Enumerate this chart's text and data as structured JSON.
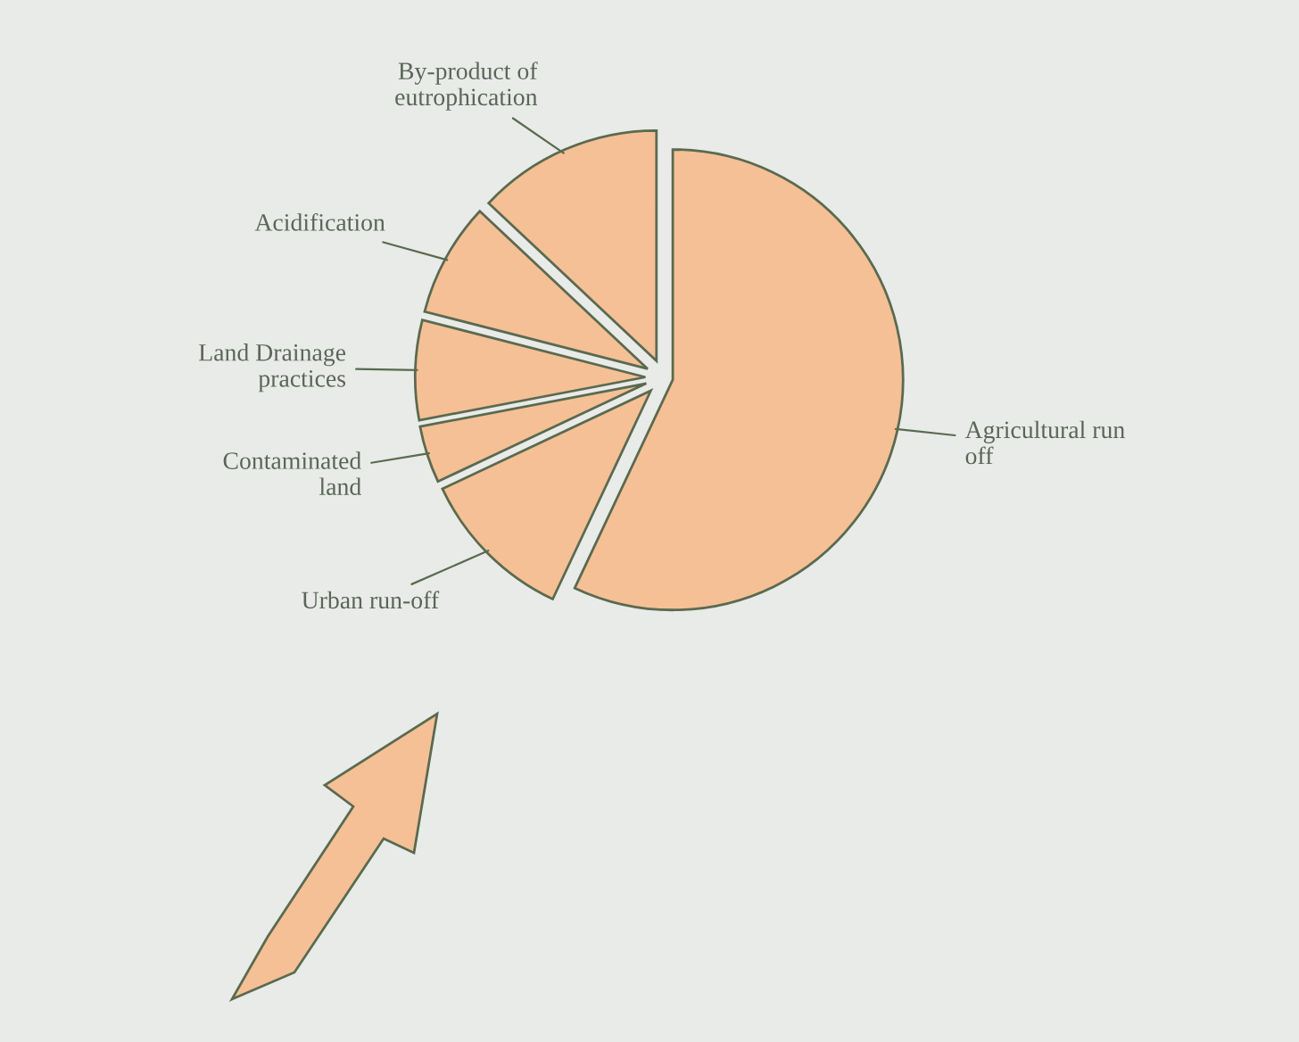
{
  "chart_data": {
    "type": "pie",
    "categories": [
      "Agricultural run\noff",
      "Urban run-off",
      "Contaminated\nland",
      "Land Drainage\npractices",
      "Acidification",
      "By-product of\neutrophication"
    ],
    "values": [
      57,
      11,
      4,
      7,
      8,
      13
    ],
    "colors": [
      "#f5c095",
      "#f5c095",
      "#f5c095",
      "#f5c095",
      "#f5c095",
      "#f5c095"
    ]
  }
}
